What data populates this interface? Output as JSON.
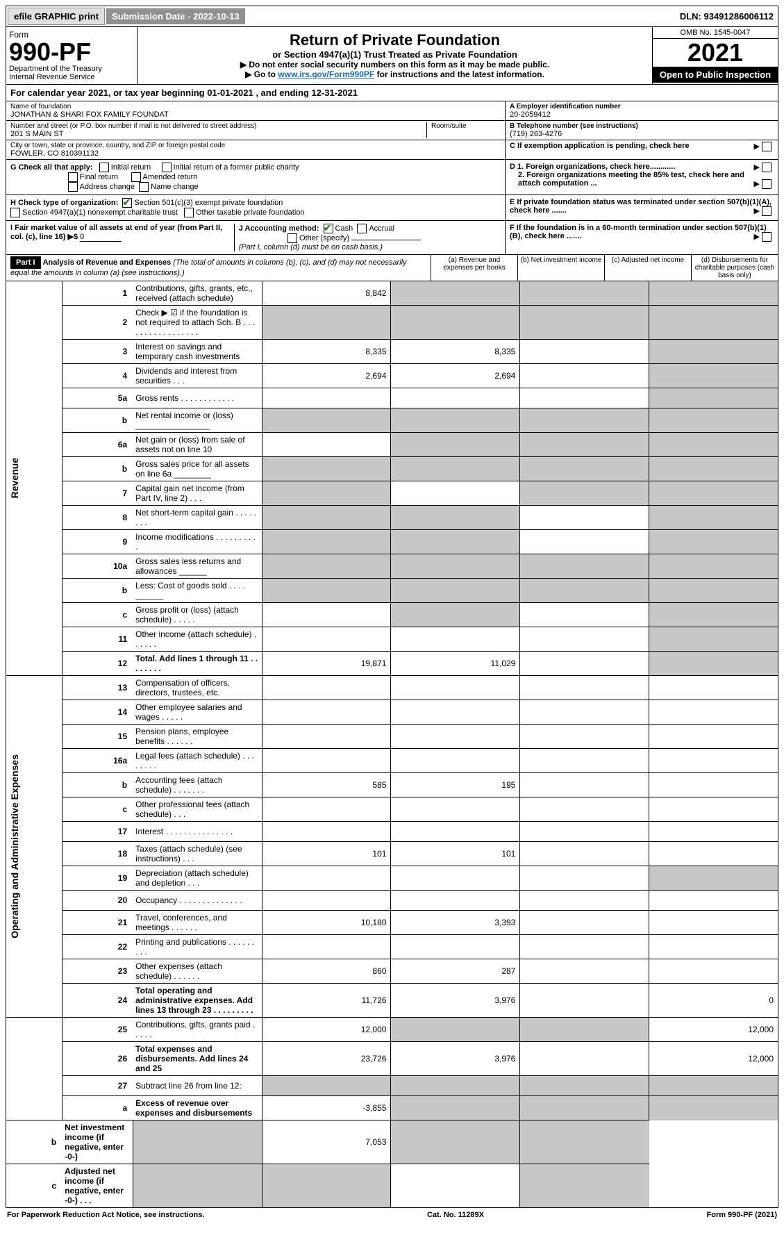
{
  "topbar": {
    "efile": "efile GRAPHIC print",
    "submission_label": "Submission Date - 2022-10-13",
    "dln": "DLN: 93491286006112"
  },
  "header": {
    "form_word": "Form",
    "form_number": "990-PF",
    "dept": "Department of the Treasury",
    "irs": "Internal Revenue Service",
    "title": "Return of Private Foundation",
    "subtitle": "or Section 4947(a)(1) Trust Treated as Private Foundation",
    "note1": "▶ Do not enter social security numbers on this form as it may be made public.",
    "note2_pre": "▶ Go to ",
    "note2_link": "www.irs.gov/Form990PF",
    "note2_post": " for instructions and the latest information.",
    "omb": "OMB No. 1545-0047",
    "year": "2021",
    "open": "Open to Public Inspection"
  },
  "calyear": "For calendar year 2021, or tax year beginning 01-01-2021            , and ending 12-31-2021",
  "foundation": {
    "name_label": "Name of foundation",
    "name": "JONATHAN & SHARI FOX FAMILY FOUNDAT",
    "ein_label": "A Employer identification number",
    "ein": "20-2059412",
    "addr_label": "Number and street (or P.O. box number if mail is not delivered to street address)",
    "room_label": "Room/suite",
    "addr": "201 S MAIN ST",
    "phone_label": "B Telephone number (see instructions)",
    "phone": "(719) 263-4276",
    "city_label": "City or town, state or province, country, and ZIP or foreign postal code",
    "city": "FOWLER, CO  810391132",
    "c_label": "C If exemption application is pending, check here"
  },
  "sectionG": {
    "label": "G Check all that apply:",
    "initial": "Initial return",
    "final": "Final return",
    "addr_change": "Address change",
    "initial_former": "Initial return of a former public charity",
    "amended": "Amended return",
    "name_change": "Name change"
  },
  "sectionD": {
    "d1": "D 1. Foreign organizations, check here............",
    "d2": "2. Foreign organizations meeting the 85% test, check here and attach computation ..."
  },
  "sectionH": {
    "label": "H Check type of organization:",
    "c3": "Section 501(c)(3) exempt private foundation",
    "trust": "Section 4947(a)(1) nonexempt charitable trust",
    "other": "Other taxable private foundation"
  },
  "sectionE": "E  If private foundation status was terminated under section 507(b)(1)(A), check here .......",
  "sectionI": {
    "label": "I Fair market value of all assets at end of year (from Part II, col. (c), line 16) ▶$",
    "val": "0"
  },
  "sectionJ": {
    "label": "J Accounting method:",
    "cash": "Cash",
    "accrual": "Accrual",
    "other": "Other (specify)",
    "note": "(Part I, column (d) must be on cash basis.)"
  },
  "sectionF": "F  If the foundation is in a 60-month termination under section 507(b)(1)(B), check here .......",
  "part1": {
    "label": "Part I",
    "title": "Analysis of Revenue and Expenses",
    "note": "(The total of amounts in columns (b), (c), and (d) may not necessarily equal the amounts in column (a) (see instructions).)",
    "col_a": "(a)  Revenue and expenses per books",
    "col_b": "(b)  Net investment income",
    "col_c": "(c)  Adjusted net income",
    "col_d": "(d)  Disbursements for charitable purposes (cash basis only)"
  },
  "vlabels": {
    "revenue": "Revenue",
    "expenses": "Operating and Administrative Expenses"
  },
  "rows": [
    {
      "n": "1",
      "l": "Contributions, gifts, grants, etc., received (attach schedule)",
      "a": "8,842",
      "b": "",
      "grey_b": true,
      "grey_c": true,
      "grey_d": true
    },
    {
      "n": "2",
      "l": "Check ▶ ☑ if the foundation is not required to attach Sch. B   . . . . . . . . . . . . . . . . .",
      "grey_a": true,
      "grey_b": true,
      "grey_c": true,
      "grey_d": true
    },
    {
      "n": "3",
      "l": "Interest on savings and temporary cash investments",
      "a": "8,335",
      "b": "8,335",
      "grey_d": true
    },
    {
      "n": "4",
      "l": "Dividends and interest from securities    .  .  .",
      "a": "2,694",
      "b": "2,694",
      "grey_d": true
    },
    {
      "n": "5a",
      "l": "Gross rents    .  .  .  .  .  .  .  .  .  .  .  .",
      "grey_d": true
    },
    {
      "n": "b",
      "l": "Net rental income or (loss)  ________________",
      "grey_a": true,
      "grey_b": true,
      "grey_c": true,
      "grey_d": true
    },
    {
      "n": "6a",
      "l": "Net gain or (loss) from sale of assets not on line 10",
      "grey_b": true,
      "grey_c": true,
      "grey_d": true
    },
    {
      "n": "b",
      "l": "Gross sales price for all assets on line 6a ________",
      "grey_a": true,
      "grey_b": true,
      "grey_c": true,
      "grey_d": true
    },
    {
      "n": "7",
      "l": "Capital gain net income (from Part IV, line 2)   .  .  .",
      "grey_a": true,
      "grey_c": true,
      "grey_d": true
    },
    {
      "n": "8",
      "l": "Net short-term capital gain  .  .  .  .  .  .  .  .",
      "grey_a": true,
      "grey_b": true,
      "grey_d": true
    },
    {
      "n": "9",
      "l": "Income modifications  .  .  .  .  .  .  .  .  .  .",
      "grey_a": true,
      "grey_b": true,
      "grey_d": true
    },
    {
      "n": "10a",
      "l": "Gross sales less returns and allowances  ______",
      "grey_a": true,
      "grey_b": true,
      "grey_c": true,
      "grey_d": true
    },
    {
      "n": "b",
      "l": "Less: Cost of goods sold     .  .  .  .  ______",
      "grey_a": true,
      "grey_b": true,
      "grey_c": true,
      "grey_d": true
    },
    {
      "n": "c",
      "l": "Gross profit or (loss) (attach schedule)    .  .  .  .  .",
      "grey_b": true,
      "grey_d": true
    },
    {
      "n": "11",
      "l": "Other income (attach schedule)    .  .  .  .  .  .",
      "grey_d": true
    },
    {
      "n": "12",
      "l": "Total. Add lines 1 through 11   .  .  .  .  .  .  .  .",
      "bold": true,
      "a": "19,871",
      "b": "11,029",
      "grey_d": true
    },
    {
      "n": "13",
      "l": "Compensation of officers, directors, trustees, etc."
    },
    {
      "n": "14",
      "l": "Other employee salaries and wages   .  .  .  .  ."
    },
    {
      "n": "15",
      "l": "Pension plans, employee benefits  .  .  .  .  .  ."
    },
    {
      "n": "16a",
      "l": "Legal fees (attach schedule)  .  .  .  .  .  .  .  ."
    },
    {
      "n": "b",
      "l": "Accounting fees (attach schedule)  .  .  .  .  .  .  .",
      "a": "585",
      "b": "195"
    },
    {
      "n": "c",
      "l": "Other professional fees (attach schedule)    .  .  ."
    },
    {
      "n": "17",
      "l": "Interest  .  .  .  .  .  .  .  .  .  .  .  .  .  .  ."
    },
    {
      "n": "18",
      "l": "Taxes (attach schedule) (see instructions)     .  .  .",
      "a": "101",
      "b": "101"
    },
    {
      "n": "19",
      "l": "Depreciation (attach schedule) and depletion    .  .  .",
      "grey_d": true
    },
    {
      "n": "20",
      "l": "Occupancy  .  .  .  .  .  .  .  .  .  .  .  .  .  ."
    },
    {
      "n": "21",
      "l": "Travel, conferences, and meetings  .  .  .  .  .  .",
      "a": "10,180",
      "b": "3,393"
    },
    {
      "n": "22",
      "l": "Printing and publications  .  .  .  .  .  .  .  .  ."
    },
    {
      "n": "23",
      "l": "Other expenses (attach schedule)  .  .  .  .  .  .",
      "a": "860",
      "b": "287"
    },
    {
      "n": "24",
      "l": "Total operating and administrative expenses. Add lines 13 through 23   .  .  .  .  .  .  .  .  .",
      "bold": true,
      "a": "11,726",
      "b": "3,976",
      "d": "0"
    },
    {
      "n": "25",
      "l": "Contributions, gifts, grants paid     .  .  .  .  .",
      "a": "12,000",
      "grey_b": true,
      "grey_c": true,
      "d": "12,000"
    },
    {
      "n": "26",
      "l": "Total expenses and disbursements. Add lines 24 and 25",
      "bold": true,
      "a": "23,726",
      "b": "3,976",
      "d": "12,000"
    },
    {
      "n": "27",
      "l": "Subtract line 26 from line 12:",
      "grey_a": true,
      "grey_b": true,
      "grey_c": true,
      "grey_d": true
    },
    {
      "n": "a",
      "l": "Excess of revenue over expenses and disbursements",
      "bold": true,
      "a": "-3,855",
      "grey_b": true,
      "grey_c": true,
      "grey_d": true
    },
    {
      "n": "b",
      "l": "Net investment income (if negative, enter -0-)",
      "bold": true,
      "grey_a": true,
      "b": "7,053",
      "grey_c": true,
      "grey_d": true
    },
    {
      "n": "c",
      "l": "Adjusted net income (if negative, enter -0-)   .  .  .",
      "bold": true,
      "grey_a": true,
      "grey_b": true,
      "grey_d": true
    }
  ],
  "footer": {
    "left": "For Paperwork Reduction Act Notice, see instructions.",
    "mid": "Cat. No. 11289X",
    "right": "Form 990-PF (2021)"
  }
}
